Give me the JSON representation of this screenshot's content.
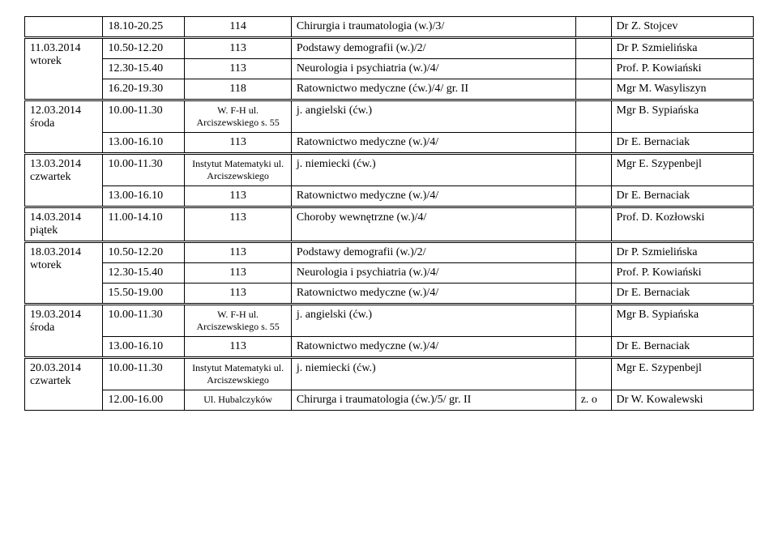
{
  "colors": {
    "text": "#000000",
    "bg": "#ffffff",
    "border": "#000000"
  },
  "font": {
    "family": "Times New Roman",
    "base_size_pt": 11
  },
  "columns": [
    "date",
    "time",
    "room",
    "subject",
    "extra",
    "teacher"
  ],
  "rows": [
    {
      "sep": false,
      "date": "",
      "time": "18.10-20.25",
      "room": "114",
      "subject": "Chirurgia i traumatologia (w.)/3/",
      "extra": "",
      "teacher": "Dr Z. Stojcev"
    },
    {
      "sep": true,
      "date": "11.03.2014\nwtorek",
      "time": "10.50-12.20",
      "room": "113",
      "subject": "Podstawy demografii  (w.)/2/",
      "extra": "",
      "teacher": "Dr P. Szmielińska",
      "rowspan": 3
    },
    {
      "sep": false,
      "date": "",
      "time": "12.30-15.40",
      "room": "113",
      "subject": "Neurologia i psychiatria (w.)/4/",
      "extra": "",
      "teacher": "Prof. P. Kowiański"
    },
    {
      "sep": false,
      "date": "",
      "time": "16.20-19.30",
      "room": "118",
      "subject": "Ratownictwo medyczne (ćw.)/4/ gr. II",
      "extra": "",
      "teacher": "Mgr M. Wasyliszyn"
    },
    {
      "sep": true,
      "date": "12.03.2014\nśroda",
      "time": "10.00-11.30",
      "room": "W. F-H ul. Arciszewskiego s. 55",
      "subject": "j. angielski (ćw.)",
      "extra": "",
      "teacher": "Mgr B. Sypiańska",
      "rowspan": 2,
      "room_small": true
    },
    {
      "sep": false,
      "date": "",
      "time": "13.00-16.10",
      "room": "113",
      "subject": "Ratownictwo medyczne (w.)/4/",
      "extra": "",
      "teacher": "Dr E. Bernaciak"
    },
    {
      "sep": true,
      "date": "13.03.2014\nczwartek",
      "time": "10.00-11.30",
      "room": "Instytut Matematyki ul. Arciszewskiego",
      "subject": "j. niemiecki (ćw.)",
      "extra": "",
      "teacher": "Mgr E. Szypenbejl",
      "rowspan": 2,
      "room_small": true
    },
    {
      "sep": false,
      "date": "",
      "time": "13.00-16.10",
      "room": "113",
      "subject": "Ratownictwo medyczne (w.)/4/",
      "extra": "",
      "teacher": "Dr E. Bernaciak"
    },
    {
      "sep": true,
      "date": "14.03.2014\npiątek",
      "time": "11.00-14.10",
      "room": "113",
      "subject": "Choroby wewnętrzne (w.)/4/",
      "extra": "",
      "teacher": "Prof. D. Kozłowski",
      "rowspan": 1
    },
    {
      "sep": true,
      "date": "18.03.2014\nwtorek",
      "time": "10.50-12.20",
      "room": "113",
      "subject": "Podstawy demografii  (w.)/2/",
      "extra": "",
      "teacher": "Dr P. Szmielińska",
      "rowspan": 3
    },
    {
      "sep": false,
      "date": "",
      "time": "12.30-15.40",
      "room": "113",
      "subject": "Neurologia i psychiatria (w.)/4/",
      "extra": "",
      "teacher": "Prof. P. Kowiański"
    },
    {
      "sep": false,
      "date": "",
      "time": "15.50-19.00",
      "room": "113",
      "subject": "Ratownictwo medyczne (w.)/4/",
      "extra": "",
      "teacher": "Dr E. Bernaciak"
    },
    {
      "sep": true,
      "date": "19.03.2014\nśroda",
      "time": "10.00-11.30",
      "room": "W. F-H ul. Arciszewskiego s. 55",
      "subject": "j. angielski (ćw.)",
      "extra": "",
      "teacher": "Mgr B. Sypiańska",
      "rowspan": 2,
      "room_small": true
    },
    {
      "sep": false,
      "date": "",
      "time": "13.00-16.10",
      "room": "113",
      "subject": "Ratownictwo medyczne (w.)/4/",
      "extra": "",
      "teacher": "Dr E. Bernaciak"
    },
    {
      "sep": true,
      "date": "20.03.2014\nczwartek",
      "time": "10.00-11.30",
      "room": "Instytut Matematyki ul. Arciszewskiego",
      "subject": "j. niemiecki (ćw.)",
      "extra": "",
      "teacher": "Mgr E. Szypenbejl",
      "rowspan": 2,
      "room_small": true
    },
    {
      "sep": false,
      "date": "",
      "time": "12.00-16.00",
      "room": "Ul. Hubalczyków",
      "subject": "Chirurga i traumatologia (ćw.)/5/ gr. II",
      "extra": "z. o",
      "teacher": "Dr W. Kowalewski",
      "room_small": true
    }
  ]
}
